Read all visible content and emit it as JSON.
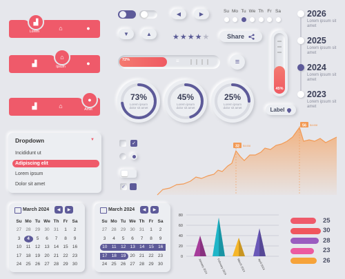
{
  "tab_bars": [
    {
      "label": "Lorem",
      "active_index": 0
    },
    {
      "label": "Ipsum",
      "active_index": 1
    },
    {
      "label": "Amet",
      "active_index": 2
    }
  ],
  "colors": {
    "coral": "#ef5a6a",
    "purple": "#5d5a99",
    "orange": "#f4a15d",
    "bg": "#e6e7ec"
  },
  "mini_calendar": {
    "weekdays": [
      "Su",
      "Mo",
      "Tu",
      "We",
      "Th",
      "Fr",
      "Sa"
    ],
    "selected": "Tu"
  },
  "rating": {
    "value": 4,
    "max": 5
  },
  "share_label": "Share",
  "progress": {
    "label": "72%",
    "value": 0.72
  },
  "vertical_slider": {
    "label": "45%",
    "value": 0.45
  },
  "timeline": [
    {
      "year": "2026",
      "text": "Lorem ipsum sit amet"
    },
    {
      "year": "2025",
      "text": "Lorem ipsum sit amet"
    },
    {
      "year": "2024",
      "text": "Lorem ipsum sit amet",
      "active": true
    },
    {
      "year": "2023",
      "text": "Lorem ipsum sit amet"
    }
  ],
  "rings": [
    {
      "label": "73%",
      "value": 0.73,
      "sub1": "Lorem ipsum",
      "sub2": "dolor sit amet"
    },
    {
      "label": "45%",
      "value": 0.45,
      "sub1": "Lorem ipsum",
      "sub2": "dolor sit amet"
    },
    {
      "label": "25%",
      "value": 0.25,
      "sub1": "Lorem ipsum",
      "sub2": "dolor sit amet"
    }
  ],
  "location_label": "Label",
  "dropdown": {
    "title": "Dropdown",
    "items": [
      "Incididunt ut",
      "Adipiscing elit",
      "Lorem ipsum",
      "Dolor sit amet"
    ],
    "selected_index": 1
  },
  "area_chart": {
    "callouts": [
      {
        "value": "32",
        "detail": "$4458"
      },
      {
        "value": "56",
        "detail": "$4458"
      }
    ]
  },
  "calendars": [
    {
      "title": "March 2024",
      "weekdays": [
        "Su",
        "Mo",
        "Tu",
        "We",
        "Th",
        "Fr",
        "Sa"
      ],
      "rows": [
        [
          "27",
          "28",
          "29",
          "30",
          "31",
          "1",
          "2"
        ],
        [
          "3",
          "4",
          "5",
          "6",
          "7",
          "8",
          "9"
        ],
        [
          "10",
          "11",
          "12",
          "13",
          "14",
          "15",
          "16"
        ],
        [
          "17",
          "18",
          "19",
          "20",
          "21",
          "22",
          "23"
        ],
        [
          "24",
          "25",
          "26",
          "27",
          "28",
          "29",
          "30"
        ]
      ],
      "selected": "4"
    },
    {
      "title": "March 2024",
      "weekdays": [
        "Su",
        "Mo",
        "Tu",
        "We",
        "Th",
        "Fr",
        "Sa"
      ],
      "rows": [
        [
          "27",
          "28",
          "29",
          "30",
          "31",
          "1",
          "2"
        ],
        [
          "3",
          "4",
          "5",
          "6",
          "7",
          "8",
          "9"
        ],
        [
          "10",
          "11",
          "12",
          "13",
          "14",
          "15",
          "16"
        ],
        [
          "17",
          "18",
          "19",
          "20",
          "21",
          "22",
          "23"
        ],
        [
          "24",
          "25",
          "26",
          "27",
          "28",
          "29",
          "30"
        ]
      ],
      "range_from": "10",
      "range_to": "19"
    }
  ],
  "chart_data": [
    {
      "type": "bar",
      "categories": [
        "January 2024",
        "February 2024",
        "March 2024",
        "April 2024"
      ],
      "values": [
        40,
        75,
        36,
        54
      ],
      "colors": [
        "#a63c9b",
        "#1fb5c8",
        "#f5b62a",
        "#6a58b8"
      ],
      "ylim": [
        0,
        80
      ],
      "yticks": [
        "0",
        "20",
        "40",
        "60",
        "80"
      ],
      "grid": true
    },
    {
      "type": "bar",
      "orientation": "horizontal",
      "values": [
        25,
        30,
        28,
        23,
        26
      ],
      "labels": [
        "25",
        "30",
        "28",
        "23",
        "26"
      ],
      "colors": [
        "#ef5a6a",
        "#f0565e",
        "#9a5cc0",
        "#ec5aa0",
        "#f6a33a"
      ]
    }
  ]
}
